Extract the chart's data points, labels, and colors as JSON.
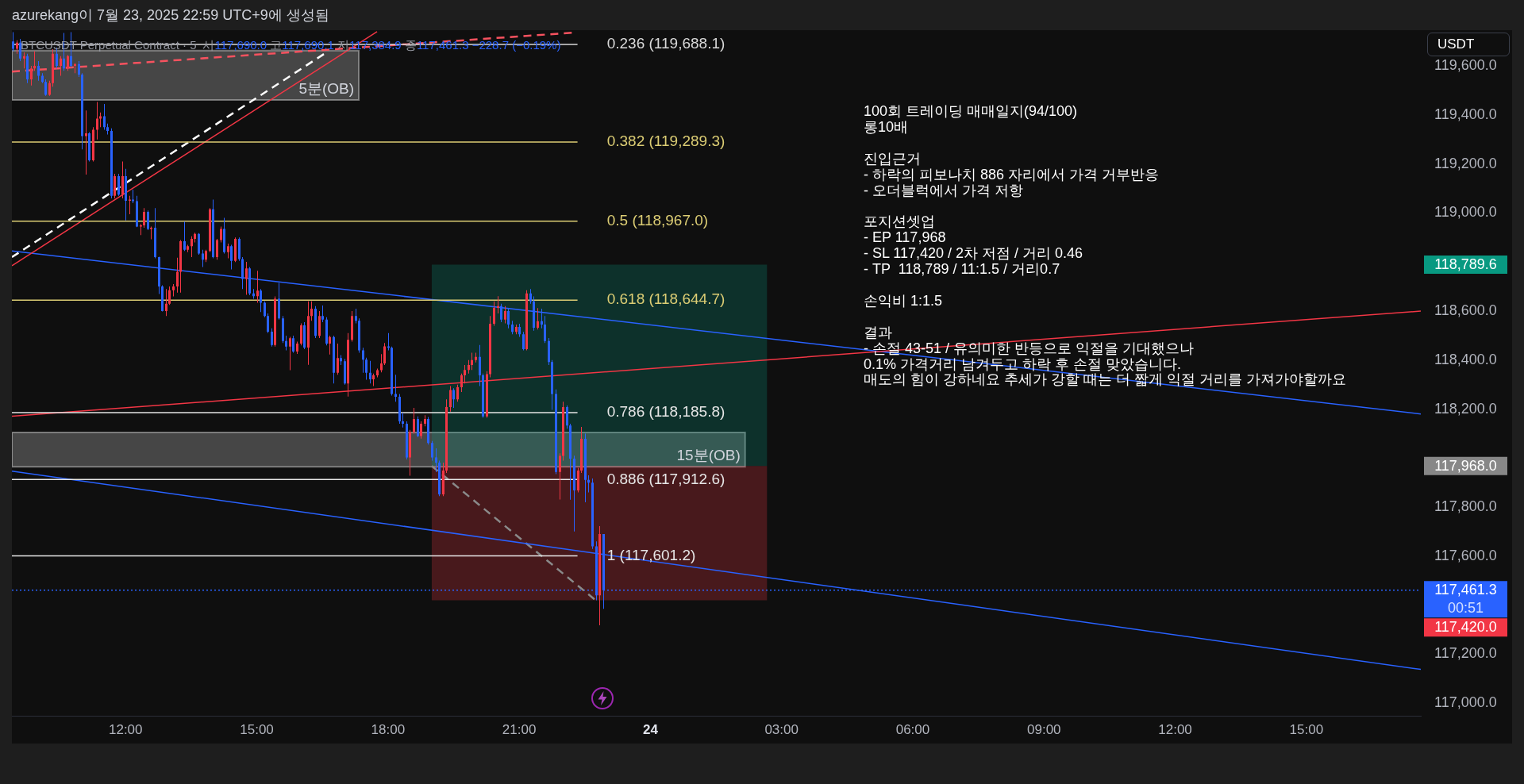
{
  "chart_data": {
    "type": "candlestick",
    "title": "BTCUSDT Perpetual Contract · 5",
    "subtitle": "시117,690.0 고117,690.1 저117,384.9 종117,461.3 −228.7 (−0.19%)",
    "ylabel": "USDT",
    "annotations": [
      "azurekang이 7월 23, 2025 22:59 UTC+9에 생성됨",
      "100회 트레이딩 매매일지(94/100)\n롱10배\n\n진입근거\n- 하락의 피보나치 886 자리에서 가격 거부반응\n- 오더블럭에서 가격 저항\n\n포지션셋업\n- EP 117,968\n- SL 117,420 / 2차 저점 / 거리 0.46\n- TP  118,789 / 11:1.5 / 거리0.7\n\n손익비 1:1.5\n\n결과\n- 손절 43-51 / 유의미한 반등으로 익절을 기대했으나\n0.1% 가격거리 남겨두고 하락 후 손절 맞았습니다.\n매도의 힘이 강하네요 추세가 강할 때는 더 짧게 익절 거리를 가져가야할까요",
      "118,789.6",
      "117,968.0",
      "117,420.0"
    ],
    "x": [
      "2025-07-23T09:25",
      "2025-07-23T09:30",
      "2025-07-23T09:35",
      "2025-07-23T09:40",
      "2025-07-23T09:45",
      "2025-07-23T09:50",
      "2025-07-23T09:55",
      "2025-07-23T10:00",
      "2025-07-23T10:05",
      "2025-07-23T10:10",
      "2025-07-23T10:15",
      "2025-07-23T10:20",
      "2025-07-23T10:25",
      "2025-07-23T10:30",
      "2025-07-23T10:35",
      "2025-07-23T10:40",
      "2025-07-23T10:45",
      "2025-07-23T10:50",
      "2025-07-23T10:55",
      "2025-07-23T11:00",
      "2025-07-23T11:05",
      "2025-07-23T11:10",
      "2025-07-23T11:15",
      "2025-07-23T11:20",
      "2025-07-23T11:25",
      "2025-07-23T11:30",
      "2025-07-23T11:35",
      "2025-07-23T11:40",
      "2025-07-23T11:45",
      "2025-07-23T11:50",
      "2025-07-23T11:55",
      "2025-07-23T12:00",
      "2025-07-23T12:05",
      "2025-07-23T12:10",
      "2025-07-23T12:15",
      "2025-07-23T12:20",
      "2025-07-23T12:25",
      "2025-07-23T12:30",
      "2025-07-23T12:35",
      "2025-07-23T12:40",
      "2025-07-23T12:45",
      "2025-07-23T12:50",
      "2025-07-23T12:55",
      "2025-07-23T13:00",
      "2025-07-23T13:05",
      "2025-07-23T13:10",
      "2025-07-23T13:15",
      "2025-07-23T13:20",
      "2025-07-23T13:25",
      "2025-07-23T13:30",
      "2025-07-23T13:35",
      "2025-07-23T13:40",
      "2025-07-23T13:45",
      "2025-07-23T13:50",
      "2025-07-23T13:55",
      "2025-07-23T14:00",
      "2025-07-23T14:05",
      "2025-07-23T14:10",
      "2025-07-23T14:15",
      "2025-07-23T14:20",
      "2025-07-23T14:25",
      "2025-07-23T14:30",
      "2025-07-23T14:35",
      "2025-07-23T14:40",
      "2025-07-23T14:45",
      "2025-07-23T14:50",
      "2025-07-23T14:55",
      "2025-07-23T15:00",
      "2025-07-23T15:05",
      "2025-07-23T15:10",
      "2025-07-23T15:15",
      "2025-07-23T15:20",
      "2025-07-23T15:25",
      "2025-07-23T15:30",
      "2025-07-23T15:35",
      "2025-07-23T15:40",
      "2025-07-23T15:45",
      "2025-07-23T15:50",
      "2025-07-23T15:55",
      "2025-07-23T16:00",
      "2025-07-23T16:05",
      "2025-07-23T16:10",
      "2025-07-23T16:15",
      "2025-07-23T16:20",
      "2025-07-23T16:25",
      "2025-07-23T16:30",
      "2025-07-23T16:35",
      "2025-07-23T16:40",
      "2025-07-23T16:45",
      "2025-07-23T16:50",
      "2025-07-23T16:55",
      "2025-07-23T17:00",
      "2025-07-23T17:05",
      "2025-07-23T17:10",
      "2025-07-23T17:15",
      "2025-07-23T17:20",
      "2025-07-23T17:25",
      "2025-07-23T17:30",
      "2025-07-23T17:35",
      "2025-07-23T17:40",
      "2025-07-23T17:45",
      "2025-07-23T17:50",
      "2025-07-23T17:55",
      "2025-07-23T18:00",
      "2025-07-23T18:05",
      "2025-07-23T18:10",
      "2025-07-23T18:15",
      "2025-07-23T18:20",
      "2025-07-23T18:25",
      "2025-07-23T18:30",
      "2025-07-23T18:35",
      "2025-07-23T18:40",
      "2025-07-23T18:45",
      "2025-07-23T18:50",
      "2025-07-23T18:55",
      "2025-07-23T19:00",
      "2025-07-23T19:05",
      "2025-07-23T19:10",
      "2025-07-23T19:15",
      "2025-07-23T19:20",
      "2025-07-23T19:25",
      "2025-07-23T19:30",
      "2025-07-23T19:35",
      "2025-07-23T19:40",
      "2025-07-23T19:45",
      "2025-07-23T19:50",
      "2025-07-23T19:55",
      "2025-07-23T20:00",
      "2025-07-23T20:05",
      "2025-07-23T20:10",
      "2025-07-23T20:15",
      "2025-07-23T20:20",
      "2025-07-23T20:25",
      "2025-07-23T20:30",
      "2025-07-23T20:35",
      "2025-07-23T20:40",
      "2025-07-23T20:45",
      "2025-07-23T20:50",
      "2025-07-23T20:55",
      "2025-07-23T21:00",
      "2025-07-23T21:05",
      "2025-07-23T21:10",
      "2025-07-23T21:15",
      "2025-07-23T21:20",
      "2025-07-23T21:25",
      "2025-07-23T21:30",
      "2025-07-23T21:35",
      "2025-07-23T21:40",
      "2025-07-23T21:45",
      "2025-07-23T21:50",
      "2025-07-23T21:55",
      "2025-07-23T22:00",
      "2025-07-23T22:05",
      "2025-07-23T22:10",
      "2025-07-23T22:15",
      "2025-07-23T22:20",
      "2025-07-23T22:25",
      "2025-07-23T22:30",
      "2025-07-23T22:35",
      "2025-07-23T22:40",
      "2025-07-23T22:45",
      "2025-07-23T22:50",
      "2025-07-23T22:55"
    ],
    "ohlc": [
      [
        119700,
        119738,
        119660,
        119670
      ],
      [
        119670,
        119705,
        119650,
        119695
      ],
      [
        119695,
        119710,
        119620,
        119630
      ],
      [
        119630,
        119655,
        119590,
        119640
      ],
      [
        119640,
        119650,
        119530,
        119545
      ],
      [
        119545,
        119600,
        119520,
        119590
      ],
      [
        119590,
        119660,
        119580,
        119600
      ],
      [
        119600,
        119620,
        119540,
        119560
      ],
      [
        119560,
        119570,
        119530,
        119535
      ],
      [
        119535,
        119545,
        119478,
        119482
      ],
      [
        119482,
        119540,
        119478,
        119530
      ],
      [
        119530,
        119668,
        119515,
        119650
      ],
      [
        119650,
        119675,
        119590,
        119600
      ],
      [
        119600,
        119640,
        119560,
        119630
      ],
      [
        119630,
        119735,
        119580,
        119590
      ],
      [
        119590,
        119645,
        119580,
        119640
      ],
      [
        119640,
        119738,
        119595,
        119600
      ],
      [
        119600,
        119612,
        119570,
        119608
      ],
      [
        119608,
        119620,
        119555,
        119565
      ],
      [
        119565,
        119570,
        119260,
        119314
      ],
      [
        119314,
        119418,
        119157,
        119325
      ],
      [
        119325,
        119330,
        119210,
        119215
      ],
      [
        119215,
        119350,
        119210,
        119340
      ],
      [
        119340,
        119453,
        119300,
        119385
      ],
      [
        119385,
        119410,
        119350,
        119395
      ],
      [
        119395,
        119445,
        119340,
        119350
      ],
      [
        119350,
        119365,
        119320,
        119335
      ],
      [
        119335,
        119345,
        119060,
        119070
      ],
      [
        119070,
        119160,
        119060,
        119150
      ],
      [
        119150,
        119160,
        119070,
        119075
      ],
      [
        119075,
        119210,
        119060,
        119150
      ],
      [
        119150,
        119180,
        118970,
        119050
      ],
      [
        119050,
        119070,
        118995,
        119055
      ],
      [
        119055,
        119095,
        119040,
        119048
      ],
      [
        119048,
        119070,
        118942,
        118945
      ],
      [
        118945,
        118955,
        118910,
        118950
      ],
      [
        118950,
        119020,
        118940,
        119005
      ],
      [
        119005,
        119010,
        118930,
        118935
      ],
      [
        118935,
        118945,
        118893,
        118940
      ],
      [
        118940,
        119020,
        118815,
        118820
      ],
      [
        118820,
        118822,
        118670,
        118700
      ],
      [
        118700,
        118705,
        118598,
        118600
      ],
      [
        118600,
        118690,
        118580,
        118630
      ],
      [
        118630,
        118700,
        118625,
        118685
      ],
      [
        118685,
        118710,
        118660,
        118700
      ],
      [
        118700,
        118818,
        118675,
        118760
      ],
      [
        118760,
        118890,
        118675,
        118885
      ],
      [
        118885,
        118965,
        118845,
        118850
      ],
      [
        118850,
        118870,
        118840,
        118865
      ],
      [
        118865,
        118905,
        118820,
        118895
      ],
      [
        118895,
        118920,
        118880,
        118915
      ],
      [
        118915,
        118918,
        118830,
        118835
      ],
      [
        118835,
        118850,
        118780,
        118810
      ],
      [
        118810,
        118850,
        118800,
        118845
      ],
      [
        118845,
        119020,
        118840,
        119015
      ],
      [
        119015,
        119055,
        118815,
        118820
      ],
      [
        118820,
        118895,
        118810,
        118890
      ],
      [
        118890,
        118945,
        118880,
        118935
      ],
      [
        118935,
        118980,
        118835,
        118840
      ],
      [
        118840,
        118875,
        118815,
        118865
      ],
      [
        118865,
        118870,
        118770,
        118805
      ],
      [
        118805,
        118900,
        118800,
        118895
      ],
      [
        118895,
        118900,
        118805,
        118812
      ],
      [
        118812,
        118820,
        118690,
        118731
      ],
      [
        118731,
        118801,
        118666,
        118774
      ],
      [
        118774,
        118780,
        118665,
        118672
      ],
      [
        118672,
        118690,
        118650,
        118661
      ],
      [
        118661,
        118764,
        118634,
        118683
      ],
      [
        118683,
        118690,
        118596,
        118634
      ],
      [
        118634,
        118640,
        118575,
        118580
      ],
      [
        118580,
        118590,
        118510,
        118516
      ],
      [
        118516,
        118530,
        118455,
        118462
      ],
      [
        118462,
        118660,
        118455,
        118650
      ],
      [
        118650,
        118715,
        118565,
        118570
      ],
      [
        118570,
        118580,
        118470,
        118478
      ],
      [
        118478,
        118500,
        118440,
        118455
      ],
      [
        118455,
        118495,
        118359,
        118489
      ],
      [
        118489,
        118500,
        118430,
        118435
      ],
      [
        118435,
        118475,
        118425,
        118467
      ],
      [
        118467,
        118550,
        118460,
        118542
      ],
      [
        118542,
        118555,
        118445,
        118451
      ],
      [
        118451,
        118640,
        118381,
        118580
      ],
      [
        118580,
        118640,
        118560,
        118610
      ],
      [
        118610,
        118620,
        118490,
        118499
      ],
      [
        118499,
        118600,
        118490,
        118580
      ],
      [
        118580,
        118623,
        118555,
        118565
      ],
      [
        118565,
        118575,
        118460,
        118467
      ],
      [
        118467,
        118500,
        118423,
        118494
      ],
      [
        118494,
        118500,
        118305,
        118348
      ],
      [
        118348,
        118467,
        118340,
        118408
      ],
      [
        118408,
        118420,
        118380,
        118395
      ],
      [
        118395,
        118405,
        118300,
        118305
      ],
      [
        118305,
        118510,
        118251,
        118483
      ],
      [
        118483,
        118600,
        118475,
        118580
      ],
      [
        118580,
        118610,
        118550,
        118560
      ],
      [
        118560,
        118570,
        118430,
        118440
      ],
      [
        118440,
        118450,
        118348,
        118402
      ],
      [
        118402,
        118410,
        118320,
        118348
      ],
      [
        118348,
        118397,
        118305,
        118322
      ],
      [
        118322,
        118345,
        118294,
        118338
      ],
      [
        118338,
        118365,
        118330,
        118359
      ],
      [
        118359,
        118424,
        118350,
        118386
      ],
      [
        118386,
        118470,
        118380,
        118456
      ],
      [
        118456,
        118510,
        118440,
        118450
      ],
      [
        118450,
        118455,
        118255,
        118262
      ],
      [
        118262,
        118340,
        118230,
        118250
      ],
      [
        118250,
        118262,
        118140,
        118150
      ],
      [
        118150,
        118185,
        118125,
        118140
      ],
      [
        118140,
        118150,
        117995,
        118003
      ],
      [
        118003,
        118115,
        117928,
        118106
      ],
      [
        118106,
        118205,
        118100,
        118160
      ],
      [
        118160,
        118170,
        118085,
        118090
      ],
      [
        118090,
        118150,
        118080,
        118140
      ],
      [
        118140,
        118175,
        118130,
        118160
      ],
      [
        118160,
        118168,
        118055,
        118062
      ],
      [
        118062,
        118070,
        117990,
        118003
      ],
      [
        118003,
        118040,
        117944,
        117982
      ],
      [
        117982,
        117990,
        117845,
        117852
      ],
      [
        117852,
        117982,
        117845,
        117949
      ],
      [
        117949,
        118240,
        117940,
        118208
      ],
      [
        118208,
        118294,
        118190,
        118278
      ],
      [
        118278,
        118285,
        118205,
        118240
      ],
      [
        118240,
        118300,
        118230,
        118289
      ],
      [
        118289,
        118345,
        118270,
        118338
      ],
      [
        118338,
        118380,
        118305,
        118360
      ],
      [
        118360,
        118400,
        118345,
        118380
      ],
      [
        118380,
        118430,
        118360,
        118400
      ],
      [
        118400,
        118430,
        118390,
        118413
      ],
      [
        118413,
        118462,
        118294,
        118338
      ],
      [
        118338,
        118345,
        118165,
        118170
      ],
      [
        118170,
        118355,
        118165,
        118343
      ],
      [
        118343,
        118580,
        118330,
        118548
      ],
      [
        118548,
        118640,
        118540,
        118613
      ],
      [
        118613,
        118661,
        118590,
        118620
      ],
      [
        118620,
        118630,
        118555,
        118565
      ],
      [
        118565,
        118620,
        118550,
        118600
      ],
      [
        118600,
        118610,
        118530,
        118545
      ],
      [
        118545,
        118560,
        118505,
        118515
      ],
      [
        118515,
        118545,
        118505,
        118535
      ],
      [
        118535,
        118548,
        118495,
        118505
      ],
      [
        118505,
        118515,
        118440,
        118445
      ],
      [
        118445,
        118685,
        118440,
        118672
      ],
      [
        118672,
        118690,
        118630,
        118640
      ],
      [
        118640,
        118660,
        118520,
        118532
      ],
      [
        118532,
        118612,
        118525,
        118559
      ],
      [
        118559,
        118610,
        118530,
        118545
      ],
      [
        118545,
        118580,
        118470,
        118478
      ],
      [
        118478,
        118490,
        118380,
        118392
      ],
      [
        118392,
        118400,
        118197,
        118262
      ],
      [
        118262,
        118280,
        117935,
        117944
      ],
      [
        117944,
        118020,
        117831,
        118009
      ],
      [
        118009,
        118230,
        117990,
        118208
      ],
      [
        118208,
        118215,
        118120,
        118133
      ],
      [
        118133,
        118140,
        117830,
        117998
      ],
      [
        117998,
        118010,
        117701,
        117868
      ],
      [
        117868,
        117960,
        117860,
        117949
      ],
      [
        117949,
        118127,
        117940,
        118079
      ],
      [
        118079,
        118100,
        117820,
        117911
      ],
      [
        117911,
        117930,
        117860,
        117900
      ],
      [
        117900,
        117917,
        117630,
        117640
      ],
      [
        117640,
        117660,
        117420,
        117440
      ],
      [
        117440,
        117723,
        117318,
        117690.0
      ],
      [
        117690.0,
        117690.1,
        117384.9,
        117461.3
      ]
    ],
    "colors": [
      "#2962ff",
      "#f23645",
      "#2962ff",
      "#f23645",
      "#2962ff",
      "#f23645",
      "#f23645",
      "#2962ff",
      "#2962ff",
      "#2962ff",
      "#f23645",
      "#f23645",
      "#2962ff",
      "#f23645",
      "#2962ff",
      "#f23645",
      "#2962ff",
      "#f23645",
      "#2962ff",
      "#2962ff",
      "#f23645",
      "#2962ff",
      "#f23645",
      "#f23645",
      "#f23645",
      "#2962ff",
      "#2962ff",
      "#2962ff",
      "#f23645",
      "#2962ff",
      "#f23645",
      "#2962ff",
      "#f23645",
      "#2962ff",
      "#2962ff",
      "#f23645",
      "#f23645",
      "#2962ff",
      "#f23645",
      "#2962ff",
      "#2962ff",
      "#2962ff",
      "#f23645",
      "#f23645",
      "#f23645",
      "#f23645",
      "#f23645",
      "#2962ff",
      "#f23645",
      "#f23645",
      "#f23645",
      "#2962ff",
      "#2962ff",
      "#f23645",
      "#f23645",
      "#2962ff",
      "#f23645",
      "#f23645",
      "#2962ff",
      "#f23645",
      "#2962ff",
      "#f23645",
      "#2962ff",
      "#2962ff",
      "#f23645",
      "#2962ff",
      "#2962ff",
      "#f23645",
      "#2962ff",
      "#2962ff",
      "#2962ff",
      "#2962ff",
      "#f23645",
      "#2962ff",
      "#2962ff",
      "#2962ff",
      "#f23645",
      "#2962ff",
      "#f23645",
      "#f23645",
      "#2962ff",
      "#f23645",
      "#f23645",
      "#2962ff",
      "#f23645",
      "#2962ff",
      "#2962ff",
      "#f23645",
      "#2962ff",
      "#f23645",
      "#2962ff",
      "#2962ff",
      "#f23645",
      "#f23645",
      "#2962ff",
      "#2962ff",
      "#2962ff",
      "#2962ff",
      "#2962ff",
      "#f23645",
      "#f23645",
      "#f23645",
      "#f23645",
      "#2962ff",
      "#2962ff",
      "#2962ff",
      "#2962ff",
      "#2962ff",
      "#2962ff",
      "#f23645",
      "#f23645",
      "#2962ff",
      "#f23645",
      "#f23645",
      "#2962ff",
      "#2962ff",
      "#2962ff",
      "#2962ff",
      "#f23645",
      "#f23645",
      "#f23645",
      "#2962ff",
      "#f23645",
      "#f23645",
      "#f23645",
      "#f23645",
      "#f23645",
      "#f23645",
      "#2962ff",
      "#2962ff",
      "#f23645",
      "#f23645",
      "#f23645",
      "#f23645",
      "#2962ff",
      "#f23645",
      "#2962ff",
      "#2962ff",
      "#f23645",
      "#2962ff",
      "#2962ff",
      "#f23645",
      "#2962ff",
      "#2962ff",
      "#f23645",
      "#2962ff",
      "#2962ff",
      "#2962ff",
      "#2962ff",
      "#2962ff",
      "#f23645",
      "#f23645",
      "#2962ff",
      "#2962ff",
      "#2962ff",
      "#f23645",
      "#f23645",
      "#2962ff",
      "#2962ff",
      "#2962ff",
      "#2962ff",
      "#f23645",
      "#2962ff"
    ],
    "xlim": [
      "2025-07-23T09:24",
      "2025-07-24T17:37"
    ],
    "xticks": [
      {
        "value": "2025-07-23T12:00",
        "label": "12:00"
      },
      {
        "value": "2025-07-23T15:00",
        "label": "15:00"
      },
      {
        "value": "2025-07-23T18:00",
        "label": "18:00"
      },
      {
        "value": "2025-07-23T21:00",
        "label": "21:00"
      },
      {
        "value": "2025-07-24T00:00",
        "label": "24"
      },
      {
        "value": "2025-07-24T03:00",
        "label": "03:00"
      },
      {
        "value": "2025-07-24T06:00",
        "label": "06:00"
      },
      {
        "value": "2025-07-24T09:00",
        "label": "09:00"
      },
      {
        "value": "2025-07-24T12:00",
        "label": "12:00"
      },
      {
        "value": "2025-07-24T15:00",
        "label": "15:00"
      }
    ],
    "ylim": [
      116949,
      119746
    ],
    "yticks": [
      {
        "value": 117000,
        "label": "117,000.0"
      },
      {
        "value": 117200,
        "label": "117,200.0"
      },
      {
        "value": 117600,
        "label": "117,600.0"
      },
      {
        "value": 117800,
        "label": "117,800.0"
      },
      {
        "value": 118200,
        "label": "118,200.0"
      },
      {
        "value": 118400,
        "label": "118,400.0"
      },
      {
        "value": 118600,
        "label": "118,600.0"
      },
      {
        "value": 119000,
        "label": "119,000.0"
      },
      {
        "value": 119200,
        "label": "119,200.0"
      },
      {
        "value": 119400,
        "label": "119,400.0"
      },
      {
        "value": 119600,
        "label": "119,600.0"
      }
    ],
    "series": [
      {
        "type": "line",
        "name": "5분(OB)",
        "color": "#ebebeb",
        "x": [
          "2025-07-23T09:24",
          "2025-07-23T17:20"
        ],
        "values": [
          null,
          null
        ],
        "lower": [
          119461,
          119461
        ],
        "upper": [
          119663,
          119663
        ]
      },
      {
        "type": "line",
        "name": "15분(OB)",
        "color": "#ebebeb",
        "x": [
          "2025-07-23T09:24",
          "2025-07-24T02:10"
        ],
        "values": [
          null,
          null
        ],
        "lower": [
          117965,
          117965
        ],
        "upper": [
          118105,
          118105
        ]
      },
      {
        "type": "line",
        "color": "#089981",
        "x": [
          "2025-07-23T19:00",
          "2025-07-24T02:40"
        ],
        "values": [
          null,
          null
        ],
        "lower": [
          117968,
          117968
        ],
        "upper": [
          118789.6,
          118789.6
        ]
      },
      {
        "type": "line",
        "color": "#f23645",
        "x": [
          "2025-07-23T19:00",
          "2025-07-24T02:40"
        ],
        "values": [
          null,
          null
        ],
        "lower": [
          117420,
          117420
        ],
        "upper": [
          117968,
          117968
        ]
      },
      {
        "type": "line",
        "name": "0.236 (119,688.1)",
        "color": "#d9d9d9",
        "x": [
          "2025-07-23T09:24",
          "2025-07-23T22:20"
        ],
        "values": [
          119688.1,
          119688.1
        ]
      },
      {
        "type": "line",
        "name": "0.382 (119,289.3)",
        "color": "#dccd74",
        "x": [
          "2025-07-23T09:24",
          "2025-07-23T22:20"
        ],
        "values": [
          119289.3,
          119289.3
        ]
      },
      {
        "type": "line",
        "name": "0.5 (118,967.0)",
        "color": "#dccd74",
        "x": [
          "2025-07-23T09:24",
          "2025-07-23T22:20"
        ],
        "values": [
          118967.0,
          118967.0
        ]
      },
      {
        "type": "line",
        "name": "0.618 (118,644.7)",
        "color": "#dccd74",
        "x": [
          "2025-07-23T09:24",
          "2025-07-23T22:20"
        ],
        "values": [
          118644.7,
          118644.7
        ]
      },
      {
        "type": "line",
        "name": "0.786 (118,185.8)",
        "color": "#e6e6e6",
        "x": [
          "2025-07-23T09:24",
          "2025-07-23T22:20"
        ],
        "values": [
          118185.8,
          118185.8
        ]
      },
      {
        "type": "line",
        "name": "0.886 (117,912.6)",
        "color": "#e6e6e6",
        "x": [
          "2025-07-23T09:24",
          "2025-07-23T22:20"
        ],
        "values": [
          117912.6,
          117912.6
        ]
      },
      {
        "type": "line",
        "name": "1 (117,601.2)",
        "color": "#e6e6e6",
        "x": [
          "2025-07-23T09:24",
          "2025-07-23T22:20"
        ],
        "values": [
          117601.2,
          117601.2
        ]
      },
      {
        "type": "line",
        "color": "#ffffff",
        "line_style": "dashed",
        "x": [
          "2025-07-23T09:24",
          "2025-07-23T16:38"
        ],
        "values": [
          118820,
          119660
        ]
      },
      {
        "type": "line",
        "color": "#f23645",
        "x": [
          "2025-07-23T09:24",
          "2025-07-23T17:45"
        ],
        "values": [
          118785,
          119740
        ]
      },
      {
        "type": "line",
        "color": "#f7525f",
        "line_style": "dashed",
        "x": [
          "2025-07-23T09:24",
          "2025-07-23T22:15"
        ],
        "values": [
          119577,
          119736
        ]
      },
      {
        "type": "line",
        "color": "#f23645",
        "x": [
          "2025-07-23T09:24",
          "2025-07-24T17:37"
        ],
        "values": [
          118171,
          118600
        ]
      },
      {
        "type": "line",
        "color": "#2962ff",
        "x": [
          "2025-07-23T09:24",
          "2025-07-24T17:37"
        ],
        "values": [
          118845,
          118180
        ]
      },
      {
        "type": "line",
        "color": "#2962ff",
        "x": [
          "2025-07-23T09:24",
          "2025-07-24T17:37"
        ],
        "values": [
          117947,
          117138
        ]
      },
      {
        "type": "line",
        "color": "#8a8a8a",
        "line_style": "dashed",
        "x": [
          "2025-07-23T19:00",
          "2025-07-23T22:45"
        ],
        "values": [
          117968,
          117420
        ]
      }
    ],
    "ref_lines": [
      {
        "axis": "y",
        "value": 117461.3,
        "label": "117,461.3\n00:51",
        "color": "#2962ff",
        "line_style": "dotted"
      }
    ]
  }
}
